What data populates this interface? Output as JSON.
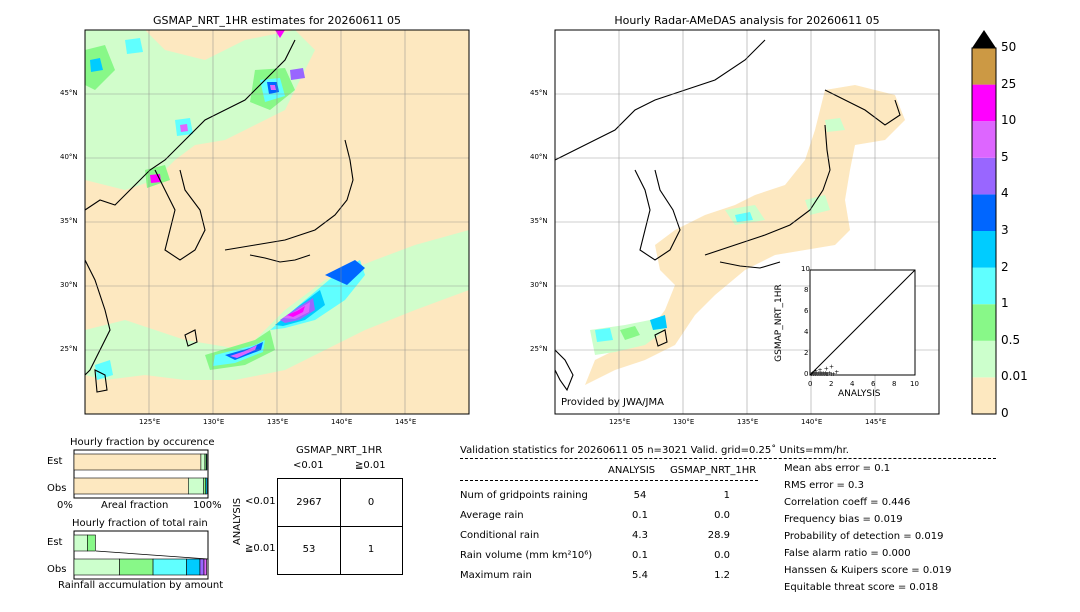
{
  "left_map": {
    "title": "GSMAP_NRT_1HR estimates for 20260611 05",
    "lat_labels": [
      "45°N",
      "40°N",
      "35°N",
      "30°N",
      "25°N"
    ],
    "lon_labels": [
      "125°E",
      "130°E",
      "135°E",
      "140°E",
      "145°E"
    ]
  },
  "right_map": {
    "title": "Hourly Radar-AMeDAS analysis for 20260611 05",
    "lat_labels": [
      "45°N",
      "40°N",
      "35°N",
      "30°N",
      "25°N"
    ],
    "lon_labels": [
      "125°E",
      "130°E",
      "135°E",
      "140°E",
      "145°E"
    ],
    "credit": "Provided by JWA/JMA"
  },
  "colorbar": {
    "levels": [
      "0",
      "0.01",
      "0.5",
      "1",
      "2",
      "3",
      "4",
      "5",
      "10",
      "25",
      "50"
    ],
    "colors": [
      "#fde8c0",
      "#ccffcc",
      "#88f888",
      "#60ffff",
      "#00ccff",
      "#0066ff",
      "#9966ff",
      "#dd66ff",
      "#ff00ff",
      "#cc9944"
    ]
  },
  "scatter": {
    "xlabel": "ANALYSIS",
    "ylabel": "GSMAP_NRT_1HR",
    "ticks": [
      "0",
      "2",
      "4",
      "6",
      "8",
      "10"
    ]
  },
  "fraction_occurrence": {
    "title": "Hourly fraction by occurence",
    "rows": [
      "Est",
      "Obs"
    ],
    "axis_left": "0%",
    "axis_mid": "Areal fraction",
    "axis_right": "100%"
  },
  "fraction_total": {
    "title": "Hourly fraction of total rain",
    "rows": [
      "Est",
      "Obs"
    ],
    "footer": "Rainfall accumulation by amount"
  },
  "contingency": {
    "title": "GSMAP_NRT_1HR",
    "col_headers": [
      "<0.01",
      "≧0.01"
    ],
    "row_axis": "ANALYSIS",
    "row_headers": [
      "<0.01",
      "≧0.01"
    ],
    "cells": [
      [
        "2967",
        "0"
      ],
      [
        "53",
        "1"
      ]
    ]
  },
  "validation": {
    "header": "Validation statistics for 20260611 05   n=3021 Valid. grid=0.25˚ Units=mm/hr.",
    "col_analysis": "ANALYSIS",
    "col_gsmap": "GSMAP_NRT_1HR",
    "rows": [
      {
        "label": "Num of gridpoints raining",
        "analysis": "54",
        "gsmap": "1"
      },
      {
        "label": "Average rain",
        "analysis": "0.1",
        "gsmap": "0.0"
      },
      {
        "label": "Conditional rain",
        "analysis": "4.3",
        "gsmap": "28.9"
      },
      {
        "label": "Rain volume (mm km²10⁶)",
        "analysis": "0.1",
        "gsmap": "0.0"
      },
      {
        "label": "Maximum rain",
        "analysis": "5.4",
        "gsmap": "1.2"
      }
    ],
    "scores": [
      "Mean abs error =    0.1",
      "RMS error =    0.3",
      "Correlation coeff =  0.446",
      "Frequency bias =  0.019",
      "Probability of detection =  0.019",
      "False alarm ratio =  0.000",
      "Hanssen & Kuipers score =  0.019",
      "Equitable threat score =  0.018"
    ]
  },
  "chart_data": [
    {
      "type": "heatmap",
      "title": "GSMAP_NRT_1HR estimates for 20260611 05",
      "x_axis": {
        "label": "",
        "range_deg_e": [
          120,
          150
        ],
        "ticks": [
          125,
          130,
          135,
          140,
          145
        ]
      },
      "y_axis": {
        "label": "",
        "range_deg_n": [
          20,
          50
        ],
        "ticks": [
          25,
          30,
          35,
          40,
          45
        ]
      },
      "color_levels_mm_per_hr": [
        0,
        0.01,
        0.5,
        1,
        2,
        3,
        4,
        5,
        10,
        25,
        50
      ]
    },
    {
      "type": "heatmap",
      "title": "Hourly Radar-AMeDAS analysis for 20260611 05",
      "x_axis": {
        "label": "",
        "range_deg_e": [
          120,
          150
        ],
        "ticks": [
          125,
          130,
          135,
          140,
          145
        ]
      },
      "y_axis": {
        "label": "",
        "range_deg_n": [
          20,
          50
        ],
        "ticks": [
          25,
          30,
          35,
          40,
          45
        ]
      },
      "color_levels_mm_per_hr": [
        0,
        0.01,
        0.5,
        1,
        2,
        3,
        4,
        5,
        10,
        25,
        50
      ]
    },
    {
      "type": "scatter",
      "xlabel": "ANALYSIS",
      "ylabel": "GSMAP_NRT_1HR",
      "xlim": [
        0,
        10
      ],
      "ylim": [
        0,
        10
      ],
      "points": [
        [
          0.1,
          0.1
        ],
        [
          0.2,
          0.2
        ],
        [
          0.3,
          0.1
        ],
        [
          0.4,
          0.2
        ],
        [
          0.5,
          0.1
        ],
        [
          0.6,
          0.2
        ],
        [
          0.7,
          0.1
        ],
        [
          0.8,
          0.2
        ],
        [
          0.9,
          0.1
        ],
        [
          1.0,
          0.2
        ],
        [
          1.1,
          0.1
        ],
        [
          1.2,
          0.2
        ],
        [
          1.3,
          0.1
        ],
        [
          1.4,
          0.2
        ],
        [
          1.5,
          0.1
        ],
        [
          1.6,
          0.1
        ],
        [
          1.8,
          0.2
        ],
        [
          2.0,
          0.1
        ],
        [
          2.2,
          0.1
        ],
        [
          2.5,
          0.3
        ],
        [
          1.5,
          0.6
        ],
        [
          2.0,
          0.8
        ],
        [
          0.5,
          0.4
        ],
        [
          0.9,
          0.5
        ]
      ]
    },
    {
      "type": "bar",
      "title": "Hourly fraction by occurence",
      "categories": [
        "Est",
        "Obs"
      ],
      "series": [
        {
          "values": [
            0.947,
            0.853
          ]
        },
        {
          "values": [
            0.03,
            0.115
          ]
        },
        {
          "values": [
            0.01,
            0.015
          ]
        },
        {
          "values": [
            0.005,
            0.01
          ]
        }
      ]
    },
    {
      "type": "bar",
      "title": "Hourly fraction of total rain",
      "categories": [
        "Est",
        "Obs"
      ],
      "series": [
        {
          "values": [
            0.1,
            0.34
          ]
        },
        {
          "values": [
            0.06,
            0.25
          ]
        },
        {
          "values": [
            0.0,
            0.25
          ]
        },
        {
          "values": [
            0.0,
            0.1
          ]
        },
        {
          "values": [
            0.0,
            0.03
          ]
        },
        {
          "values": [
            0.0,
            0.02
          ]
        }
      ]
    },
    {
      "type": "table",
      "title": "GSMAP_NRT_1HR",
      "columns": [
        "<0.01",
        "≧0.01"
      ],
      "rows": [
        "<0.01",
        "≧0.01"
      ],
      "values": [
        [
          2967,
          0
        ],
        [
          53,
          1
        ]
      ]
    }
  ]
}
